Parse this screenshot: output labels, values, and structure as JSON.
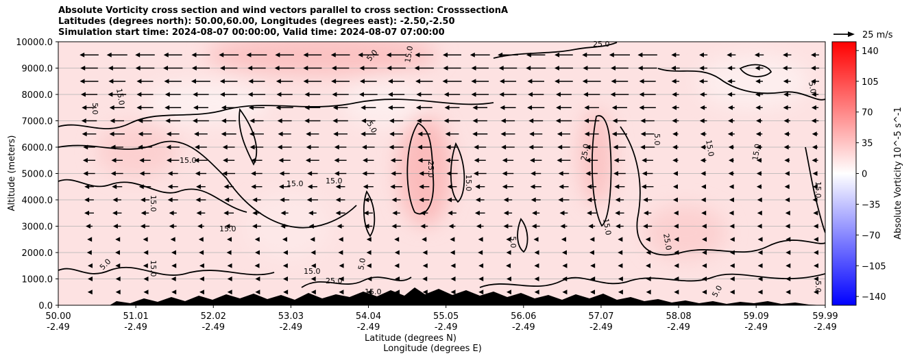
{
  "chart_data": {
    "type": "heatmap",
    "title_lines": [
      "Absolute Vorticity cross section and wind vectors parallel to cross section: CrosssectionA",
      "Latitudes (degrees north): 50.00,60.00, Longitudes (degrees east): -2.50,-2.50",
      "Simulation start time: 2024-08-07 00:00:00, Valid time: 2024-08-07 07:00:00"
    ],
    "ylabel": "Altitude (meters)",
    "xlabel_lines": [
      "Latitude (degrees N)",
      "Longitude (degrees E)"
    ],
    "ylim": [
      0,
      10000
    ],
    "y_ticks": [
      "0.0",
      "1000.0",
      "2000.0",
      "3000.0",
      "4000.0",
      "5000.0",
      "6000.0",
      "7000.0",
      "8000.0",
      "9000.0",
      "10000.0"
    ],
    "x_ticks": [
      {
        "lat": "50.00",
        "lon": "-2.49"
      },
      {
        "lat": "51.01",
        "lon": "-2.49"
      },
      {
        "lat": "52.02",
        "lon": "-2.49"
      },
      {
        "lat": "53.03",
        "lon": "-2.49"
      },
      {
        "lat": "54.04",
        "lon": "-2.49"
      },
      {
        "lat": "55.05",
        "lon": "-2.49"
      },
      {
        "lat": "56.06",
        "lon": "-2.49"
      },
      {
        "lat": "57.07",
        "lon": "-2.49"
      },
      {
        "lat": "58.08",
        "lon": "-2.49"
      },
      {
        "lat": "59.09",
        "lon": "-2.49"
      },
      {
        "lat": "59.99",
        "lon": "-2.49"
      }
    ],
    "colorbar": {
      "label": "Absolute Vorticity 10^-5 s^-1",
      "ticks": [
        "-140",
        "-105",
        "-70",
        "-35",
        "0",
        "35",
        "70",
        "105",
        "140"
      ],
      "range": [
        -150,
        150
      ],
      "low_color": "#0000ff",
      "mid_color": "#ffffff",
      "high_color": "#ff0000"
    },
    "contour_levels": [
      5.0,
      15.0,
      25.0
    ],
    "contour_labels": [
      "5.0",
      "15.0",
      "25.0",
      "15.0",
      "15.0",
      "5.0",
      "15.0",
      "15.0",
      "5.0",
      "25.0",
      "15.0",
      "5.0",
      "15.0",
      "25.0",
      "15.0",
      "5.0",
      "15.0",
      "5.0",
      "15.0",
      "25.0",
      "15.0",
      "5.0",
      "15.0",
      "5.0",
      "15.0",
      "25.0",
      "5.0",
      "15.0",
      "15.0",
      "5.0"
    ],
    "quiver_key": {
      "label": "25 m/s",
      "speed": 25
    },
    "wind_rows_altitudes": [
      500,
      1000,
      1500,
      2000,
      2500,
      3000,
      3500,
      4000,
      4500,
      5000,
      5500,
      6000,
      6500,
      7000,
      7500,
      8000,
      8500,
      9000,
      9500
    ],
    "wind_columns": 27
  }
}
